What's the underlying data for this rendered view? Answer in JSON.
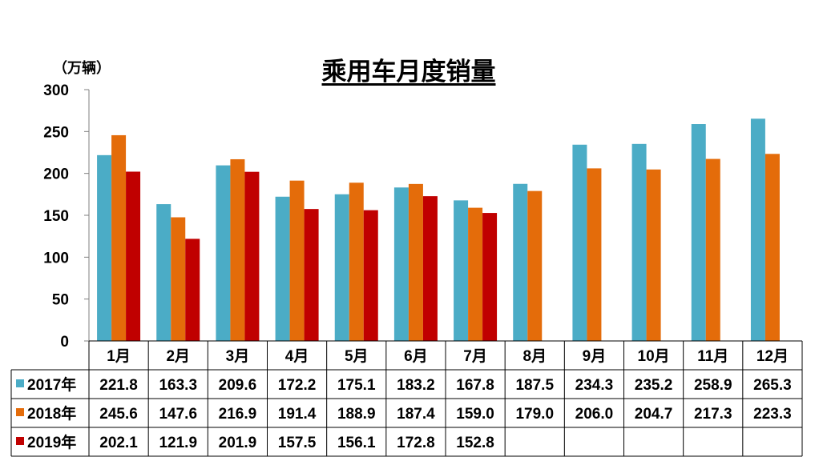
{
  "chart_data": {
    "type": "bar",
    "title": "乘用车月度销量",
    "ylabel": "（万辆）",
    "ylim": [
      0,
      300
    ],
    "yticks": [
      "0",
      "50",
      "100",
      "150",
      "200",
      "250",
      "300"
    ],
    "categories": [
      "1月",
      "2月",
      "3月",
      "4月",
      "5月",
      "6月",
      "7月",
      "8月",
      "9月",
      "10月",
      "11月",
      "12月"
    ],
    "series": [
      {
        "name": "2017年",
        "color": "#4BACC6",
        "values": [
          221.8,
          163.3,
          209.6,
          172.2,
          175.1,
          183.2,
          167.8,
          187.5,
          234.3,
          235.2,
          258.9,
          265.3
        ],
        "labels": [
          "221.8",
          "163.3",
          "209.6",
          "172.2",
          "175.1",
          "183.2",
          "167.8",
          "187.5",
          "234.3",
          "235.2",
          "258.9",
          "265.3"
        ]
      },
      {
        "name": "2018年",
        "color": "#E46C0A",
        "values": [
          245.6,
          147.6,
          216.9,
          191.4,
          188.9,
          187.4,
          159.0,
          179.0,
          206.0,
          204.7,
          217.3,
          223.3
        ],
        "labels": [
          "245.6",
          "147.6",
          "216.9",
          "191.4",
          "188.9",
          "187.4",
          "159.0",
          "179.0",
          "206.0",
          "204.7",
          "217.3",
          "223.3"
        ]
      },
      {
        "name": "2019年",
        "color": "#C00000",
        "values": [
          202.1,
          121.9,
          201.9,
          157.5,
          156.1,
          172.8,
          152.8,
          null,
          null,
          null,
          null,
          null
        ],
        "labels": [
          "202.1",
          "121.9",
          "201.9",
          "157.5",
          "156.1",
          "172.8",
          "152.8",
          "",
          "",
          "",
          "",
          ""
        ]
      }
    ],
    "grid": false,
    "legend": "data-table"
  }
}
